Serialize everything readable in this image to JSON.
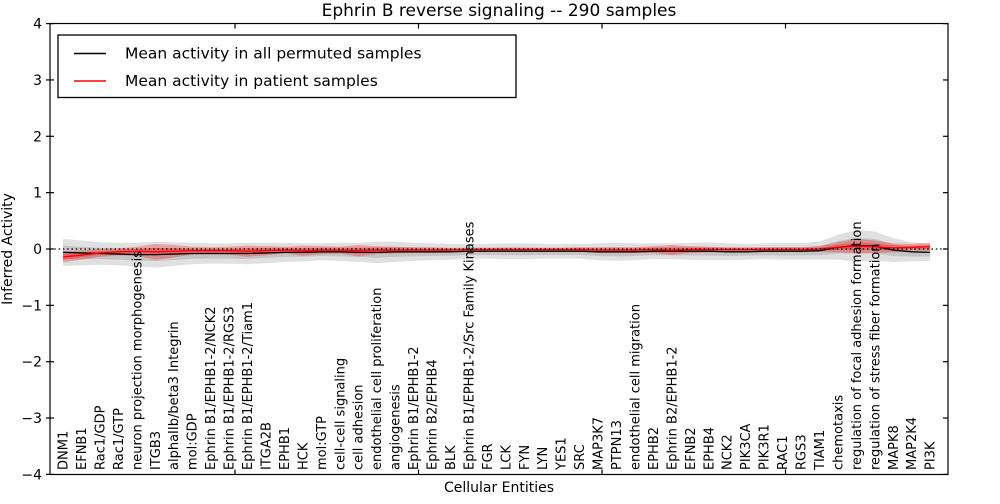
{
  "chart_data": {
    "type": "line",
    "title": "Ephrin B reverse signaling -- 290 samples",
    "xlabel": "Cellular Entities",
    "ylabel": "Inferred Activity",
    "ylim": [
      -4,
      4
    ],
    "yticks": [
      -4,
      -3,
      -2,
      -1,
      0,
      1,
      2,
      3,
      4
    ],
    "grid": false,
    "legend_position": "upper left",
    "categories": [
      "DNM1",
      "EFNB1",
      "Rac1/GDP",
      "Rac1/GTP",
      "neuron projection morphogenesis",
      "ITGB3",
      "alphaIIb/beta3 Integrin",
      "mol:GDP",
      "Ephrin B1/EPHB1-2/NCK2",
      "Ephrin B1/EPHB1-2/RGS3",
      "Ephrin B1/EPHB1-2/Tiam1",
      "ITGA2B",
      "EPHB1",
      "HCK",
      "mol:GTP",
      "cell-cell signaling",
      "cell adhesion",
      "endothelial cell proliferation",
      "angiogenesis",
      "Ephrin B1/EPHB1-2",
      "Ephrin B2/EPHB4",
      "BLK",
      "Ephrin B1/EPHB1-2/Src Family Kinases",
      "FGR",
      "LCK",
      "FYN",
      "LYN",
      "YES1",
      "SRC",
      "MAP3K7",
      "PTPN13",
      "endothelial cell migration",
      "EPHB2",
      "Ephrin B2/EPHB1-2",
      "EFNB2",
      "EPHB4",
      "NCK2",
      "PIK3CA",
      "PIK3R1",
      "RAC1",
      "RGS3",
      "TIAM1",
      "chemotaxis",
      "regulation of focal adhesion formation",
      "regulation of stress fiber formation",
      "MAPK8",
      "MAP2K4",
      "PI3K"
    ],
    "series": [
      {
        "name": "Mean activity in all permuted samples",
        "color": "#000000",
        "line_style": "solid",
        "band_color": "#000000",
        "band_opacity": 0.12,
        "values": [
          -0.06,
          -0.07,
          -0.08,
          -0.09,
          -0.1,
          -0.1,
          -0.09,
          -0.08,
          -0.08,
          -0.08,
          -0.08,
          -0.07,
          -0.06,
          -0.06,
          -0.05,
          -0.05,
          -0.06,
          -0.06,
          -0.05,
          -0.05,
          -0.05,
          -0.05,
          -0.04,
          -0.04,
          -0.04,
          -0.04,
          -0.04,
          -0.04,
          -0.04,
          -0.05,
          -0.05,
          -0.05,
          -0.04,
          -0.04,
          -0.04,
          -0.04,
          -0.05,
          -0.05,
          -0.04,
          -0.04,
          -0.04,
          -0.03,
          0.03,
          0.06,
          0.05,
          -0.02,
          -0.05,
          -0.06
        ],
        "std": [
          0.24,
          0.22,
          0.2,
          0.2,
          0.21,
          0.23,
          0.21,
          0.19,
          0.18,
          0.18,
          0.19,
          0.18,
          0.17,
          0.16,
          0.15,
          0.16,
          0.17,
          0.19,
          0.18,
          0.16,
          0.15,
          0.14,
          0.13,
          0.13,
          0.14,
          0.14,
          0.13,
          0.13,
          0.13,
          0.15,
          0.16,
          0.15,
          0.14,
          0.14,
          0.15,
          0.16,
          0.15,
          0.14,
          0.14,
          0.15,
          0.15,
          0.16,
          0.22,
          0.28,
          0.26,
          0.21,
          0.17,
          0.15
        ]
      },
      {
        "name": "Mean activity in patient samples",
        "color": "#ff0000",
        "line_style": "solid",
        "band_color": "#ff0000",
        "band_opacity": 0.28,
        "values": [
          -0.14,
          -0.11,
          -0.07,
          -0.05,
          -0.04,
          -0.05,
          -0.04,
          -0.03,
          -0.03,
          -0.03,
          -0.04,
          -0.03,
          -0.02,
          -0.03,
          -0.02,
          -0.02,
          -0.03,
          -0.02,
          -0.02,
          -0.02,
          -0.02,
          -0.02,
          -0.01,
          -0.01,
          -0.01,
          -0.01,
          -0.01,
          -0.01,
          -0.01,
          -0.02,
          -0.02,
          -0.02,
          -0.01,
          -0.02,
          -0.01,
          -0.01,
          -0.01,
          -0.01,
          -0.01,
          -0.01,
          -0.01,
          0.0,
          0.03,
          0.05,
          0.04,
          0.02,
          0.03,
          0.04
        ],
        "std": [
          0.1,
          0.08,
          0.07,
          0.06,
          0.08,
          0.14,
          0.11,
          0.07,
          0.06,
          0.07,
          0.1,
          0.08,
          0.06,
          0.09,
          0.07,
          0.06,
          0.1,
          0.07,
          0.06,
          0.05,
          0.05,
          0.04,
          0.03,
          0.03,
          0.03,
          0.03,
          0.03,
          0.03,
          0.04,
          0.05,
          0.05,
          0.05,
          0.06,
          0.09,
          0.06,
          0.05,
          0.04,
          0.04,
          0.04,
          0.04,
          0.04,
          0.05,
          0.09,
          0.13,
          0.11,
          0.08,
          0.06,
          0.07
        ]
      }
    ],
    "reference_line": {
      "y": 0,
      "color": "#000000",
      "style": "dotted"
    }
  },
  "colors": {
    "background": "#ffffff",
    "frame": "#000000",
    "permuted_line": "#000000",
    "patient_line": "#ff0000"
  }
}
